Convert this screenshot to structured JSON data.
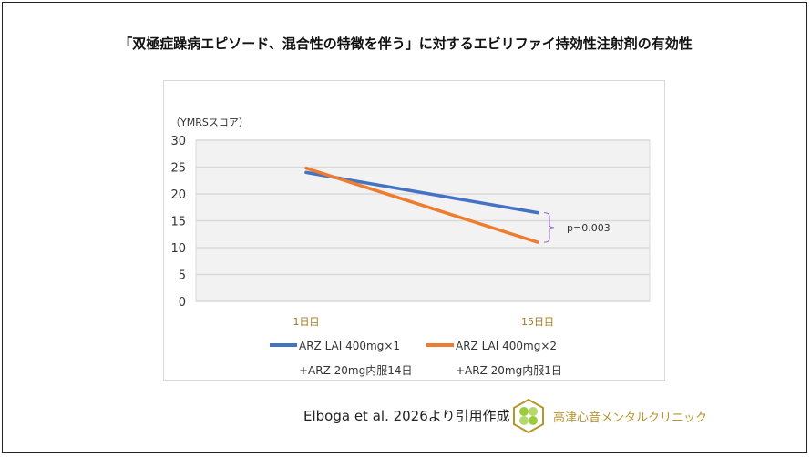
{
  "title": "「双極症躁病エピソード、混合性の特徴を伴う」に対するエビリファイ持効性注射剤の有効性",
  "chart_data": {
    "type": "line",
    "ylabel": "（YMRSスコア）",
    "ylim": [
      0,
      30
    ],
    "yticks": [
      0,
      5,
      10,
      15,
      20,
      25,
      30
    ],
    "categories": [
      "1日目",
      "15日目"
    ],
    "grid": true,
    "legend_placement": "bottom",
    "series": [
      {
        "name": "ARZ LAI 400mg×1",
        "name_line2": "+ARZ 20mg内服14日",
        "values": [
          24.0,
          16.5
        ],
        "color": "#4472c4"
      },
      {
        "name": "ARZ LAI 400mg×2",
        "name_line2": "+ARZ 20mg内服1日",
        "values": [
          24.8,
          11.0
        ],
        "color": "#ed7d31"
      }
    ],
    "annotation": "p=0.003",
    "annotation_color": "#9966cc",
    "category_label_color": "#a07820",
    "plot_bg": "#f2f2f2"
  },
  "footer": {
    "citation": "Elboga et al. 2026より引用作成",
    "clinic_name": "高津心音メンタルクリニック"
  }
}
